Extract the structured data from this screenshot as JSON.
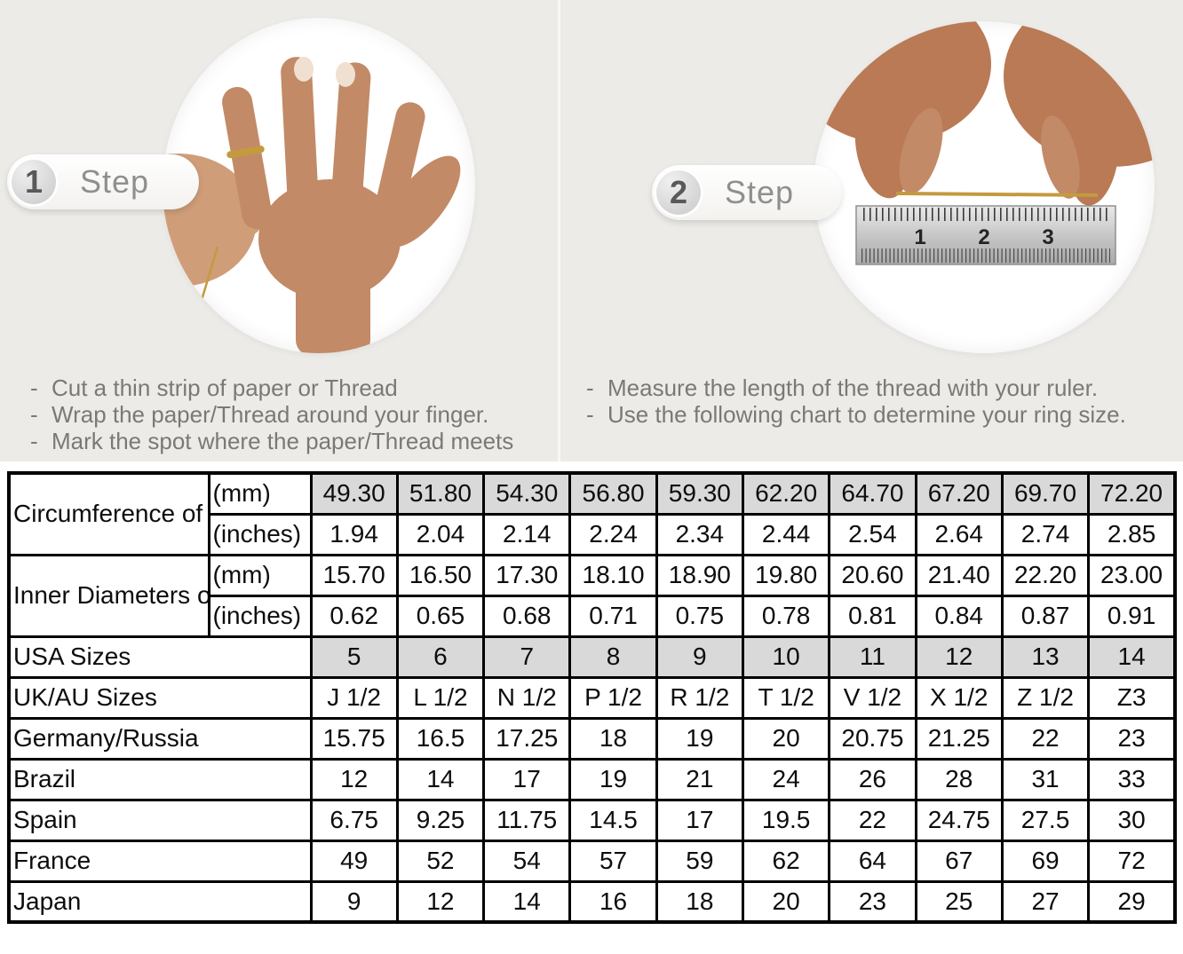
{
  "steps": [
    {
      "number": "1",
      "label": "Step",
      "bullets": [
        "Cut a thin strip of paper or Thread",
        "Wrap the paper/Thread around your finger.",
        "Mark the spot where the paper/Thread meets"
      ]
    },
    {
      "number": "2",
      "label": "Step",
      "bullets": [
        "Measure the length of the thread with your ruler.",
        "Use the following chart to determine your ring size."
      ]
    }
  ],
  "photos": {
    "ruler_marks": [
      "1",
      "2",
      "3"
    ]
  },
  "table": {
    "rows": [
      {
        "label": "Circumference of Your Finger",
        "rowspan": true,
        "unit": "(mm)",
        "values": [
          "49.30",
          "51.80",
          "54.30",
          "56.80",
          "59.30",
          "62.20",
          "64.70",
          "67.20",
          "69.70",
          "72.20"
        ],
        "shaded": true
      },
      {
        "unit": "(inches)",
        "values": [
          "1.94",
          "2.04",
          "2.14",
          "2.24",
          "2.34",
          "2.44",
          "2.54",
          "2.64",
          "2.74",
          "2.85"
        ]
      },
      {
        "label": "Inner Diameters of Rings",
        "rowspan": true,
        "unit": "(mm)",
        "values": [
          "15.70",
          "16.50",
          "17.30",
          "18.10",
          "18.90",
          "19.80",
          "20.60",
          "21.40",
          "22.20",
          "23.00"
        ]
      },
      {
        "unit": "(inches)",
        "values": [
          "0.62",
          "0.65",
          "0.68",
          "0.71",
          "0.75",
          "0.78",
          "0.81",
          "0.84",
          "0.87",
          "0.91"
        ]
      },
      {
        "label": "USA Sizes",
        "values": [
          "5",
          "6",
          "7",
          "8",
          "9",
          "10",
          "11",
          "12",
          "13",
          "14"
        ],
        "shaded": true
      },
      {
        "label": "UK/AU Sizes",
        "values": [
          "J 1/2",
          "L 1/2",
          "N 1/2",
          "P 1/2",
          "R 1/2",
          "T 1/2",
          "V 1/2",
          "X 1/2",
          "Z 1/2",
          "Z3"
        ]
      },
      {
        "label": "Germany/Russia",
        "values": [
          "15.75",
          "16.5",
          "17.25",
          "18",
          "19",
          "20",
          "20.75",
          "21.25",
          "22",
          "23"
        ]
      },
      {
        "label": "Brazil",
        "values": [
          "12",
          "14",
          "17",
          "19",
          "21",
          "24",
          "26",
          "28",
          "31",
          "33"
        ]
      },
      {
        "label": "Spain",
        "values": [
          "6.75",
          "9.25",
          "11.75",
          "14.5",
          "17",
          "19.5",
          "22",
          "24.75",
          "27.5",
          "30"
        ]
      },
      {
        "label": "France",
        "values": [
          "49",
          "52",
          "54",
          "57",
          "59",
          "62",
          "64",
          "67",
          "69",
          "72"
        ]
      },
      {
        "label": "Japan",
        "values": [
          "9",
          "12",
          "14",
          "16",
          "18",
          "20",
          "23",
          "25",
          "27",
          "29"
        ]
      }
    ]
  },
  "colors": {
    "background": "#ecebe7",
    "table_shaded": "#d9d9d9",
    "table_border": "#000000",
    "instruction_text": "#7c7975",
    "badge_number": "#595959",
    "badge_label": "#8f8f8f",
    "skin": "#c28a66",
    "skin_dark": "#b97a55",
    "gold_thread": "#c49a3f"
  }
}
